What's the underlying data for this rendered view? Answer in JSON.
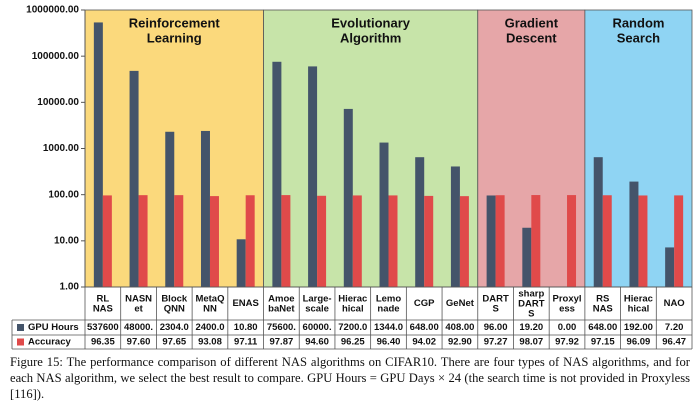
{
  "chart_data": {
    "type": "bar",
    "log_scale": true,
    "groups": [
      {
        "name": "Reinforcement\nLearning",
        "color": "#fbd97c",
        "categories": [
          "RL\nNAS",
          "NASN\net",
          "Block\nQNN",
          "MetaQ\nNN",
          "ENAS"
        ]
      },
      {
        "name": "Evolutionary\nAlgorithm",
        "color": "#c7e4a9",
        "categories": [
          "Amoe\nbaNet",
          "Large-\nscale",
          "Hierac\nhical",
          "Lemo\nnade",
          "CGP",
          "GeNet"
        ]
      },
      {
        "name": "Gradient\nDescent",
        "color": "#e6a6a8",
        "categories": [
          "DART\nS",
          "sharp\nDART\nS",
          "Proxyl\ness"
        ]
      },
      {
        "name": "Random\nSearch",
        "color": "#8fd4f3",
        "categories": [
          "RS\nNAS",
          "Hierac\nhical",
          "NAO"
        ]
      }
    ],
    "series": [
      {
        "name": "GPU Hours",
        "color": "#44546a",
        "values": [
          537600,
          48000,
          2304,
          2400,
          10.8,
          75600,
          60000,
          7200,
          1344,
          648,
          408,
          96,
          19.2,
          0,
          648,
          192,
          7.2
        ],
        "value_labels": [
          "537600",
          "48000.",
          "2304.0",
          "2400.0",
          "10.80",
          "75600.",
          "60000.",
          "7200.0",
          "1344.0",
          "648.00",
          "408.00",
          "96.00",
          "19.20",
          "0.00",
          "648.00",
          "192.00",
          "7.20"
        ]
      },
      {
        "name": "Accuracy",
        "color": "#e04a4a",
        "values": [
          96.35,
          97.6,
          97.65,
          93.08,
          97.11,
          97.87,
          94.6,
          96.25,
          96.4,
          94.02,
          92.9,
          97.27,
          98.07,
          97.92,
          97.15,
          96.09,
          96.47
        ],
        "value_labels": [
          "96.35",
          "97.60",
          "97.65",
          "93.08",
          "97.11",
          "97.87",
          "94.60",
          "96.25",
          "96.40",
          "94.02",
          "92.90",
          "97.27",
          "98.07",
          "97.92",
          "97.15",
          "96.09",
          "96.47"
        ]
      }
    ],
    "ylim": [
      1,
      1000000
    ],
    "yticks": [
      {
        "value": 1,
        "label": "1.00"
      },
      {
        "value": 10,
        "label": "10.00"
      },
      {
        "value": 100,
        "label": "100.00"
      },
      {
        "value": 1000,
        "label": "1000.00"
      },
      {
        "value": 10000,
        "label": "10000.00"
      },
      {
        "value": 100000,
        "label": "100000.00"
      },
      {
        "value": 1000000,
        "label": "1000000.00"
      }
    ],
    "caption": "Figure 15: The performance comparison of different NAS algorithms on CIFAR10. There are four types of NAS algorithms, and for each NAS algorithm, we select the best result to compare. GPU Hours = GPU Days × 24 (the search time is not provided in Proxyless [116])."
  }
}
